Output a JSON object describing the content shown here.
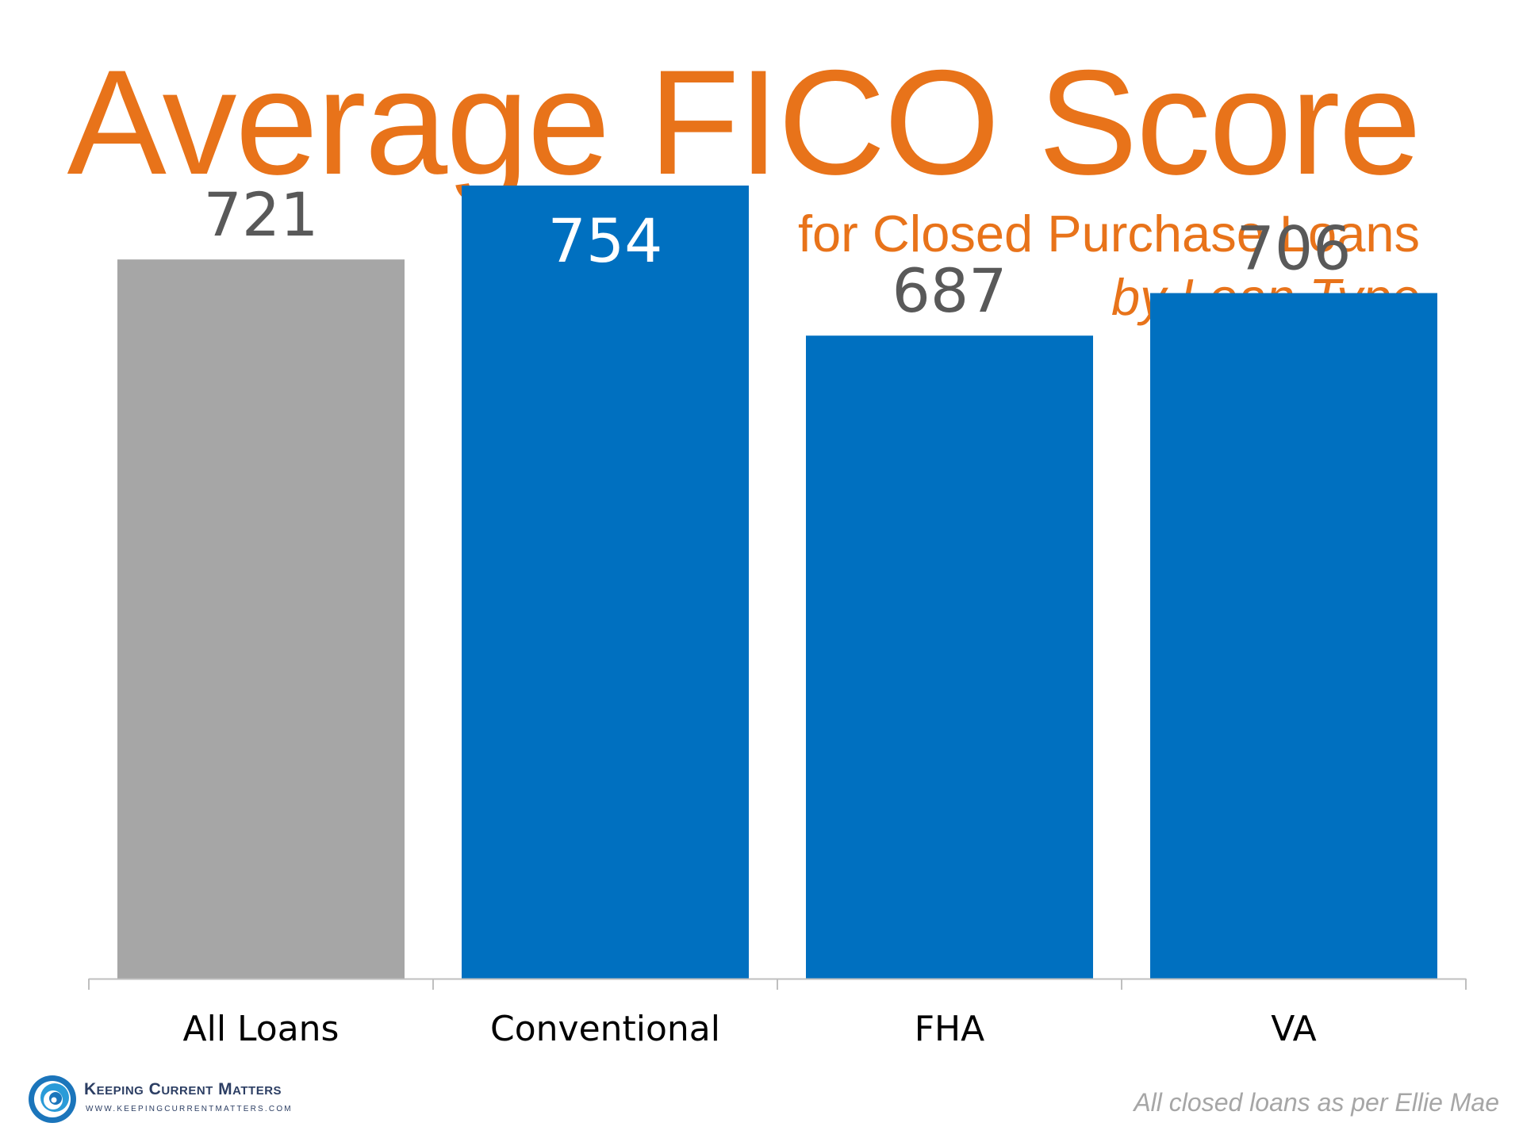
{
  "chart_data": {
    "type": "bar",
    "title": "Average FICO Score",
    "subtitle": "for Closed Purchase Loans",
    "subtitle2": "by Loan Type",
    "categories": [
      "All Loans",
      "Conventional",
      "FHA",
      "VA"
    ],
    "values": [
      721,
      754,
      687,
      706
    ],
    "colors": [
      "#A6A6A6",
      "#0070C0",
      "#0070C0",
      "#0070C0"
    ],
    "value_label_colors": [
      "#595959",
      "#FFFFFF",
      "#595959",
      "#595959"
    ],
    "xlabel": "",
    "ylabel": "",
    "ylim": [
      400,
      800
    ],
    "grid": false,
    "legend": "none"
  },
  "footer": {
    "source": "All closed loans as per Ellie Mae",
    "logo_name": "Keeping Current Matters",
    "logo_url": "WWW.KEEPINGCURRENTMATTERS.COM",
    "logo_icon": "swirl-icon"
  },
  "colors": {
    "accent": "#E8731A",
    "bar_primary": "#0070C0",
    "bar_secondary": "#A6A6A6",
    "logo_text": "#2C3E63"
  }
}
